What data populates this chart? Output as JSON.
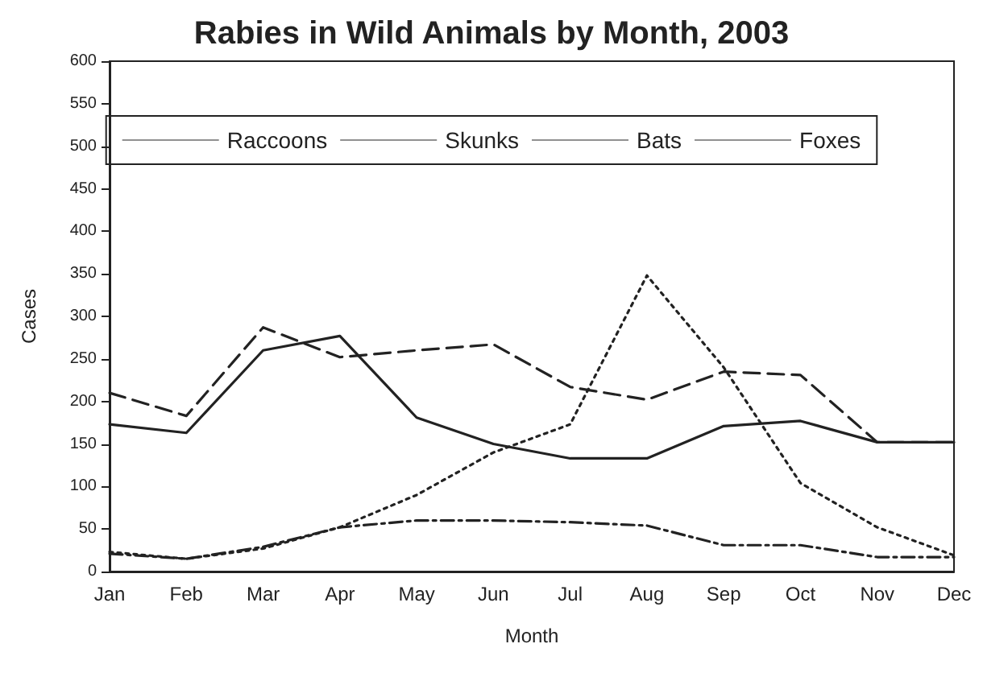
{
  "chart_data": {
    "type": "line",
    "title": "Rabies in Wild Animals by Month, 2003",
    "xlabel": "Month",
    "ylabel": "Cases",
    "categories": [
      "Jan",
      "Feb",
      "Mar",
      "Apr",
      "May",
      "Jun",
      "Jul",
      "Aug",
      "Sep",
      "Oct",
      "Nov",
      "Dec"
    ],
    "series": [
      {
        "name": "Raccoons",
        "color": "#222222",
        "line_style": "dashed",
        "values": [
          210,
          183,
          287,
          252,
          260,
          267,
          217,
          202,
          235,
          231,
          152,
          152
        ]
      },
      {
        "name": "Skunks",
        "color": "#222222",
        "line_style": "solid",
        "values": [
          173,
          163,
          260,
          277,
          181,
          150,
          133,
          133,
          171,
          177,
          152,
          152
        ]
      },
      {
        "name": "Bats",
        "color": "#222222",
        "line_style": "dotted",
        "values": [
          23,
          15,
          27,
          52,
          90,
          140,
          173,
          348,
          240,
          104,
          52,
          19
        ]
      },
      {
        "name": "Foxes",
        "color": "#222222",
        "line_style": "dashdot",
        "values": [
          21,
          15,
          29,
          52,
          60,
          60,
          58,
          54,
          31,
          31,
          17,
          17
        ]
      }
    ],
    "ylim": [
      0,
      600
    ],
    "yticks": [
      0,
      50,
      100,
      150,
      200,
      250,
      300,
      350,
      400,
      450,
      500,
      550,
      600
    ],
    "grid": false,
    "legend": "top",
    "marker": "none"
  }
}
